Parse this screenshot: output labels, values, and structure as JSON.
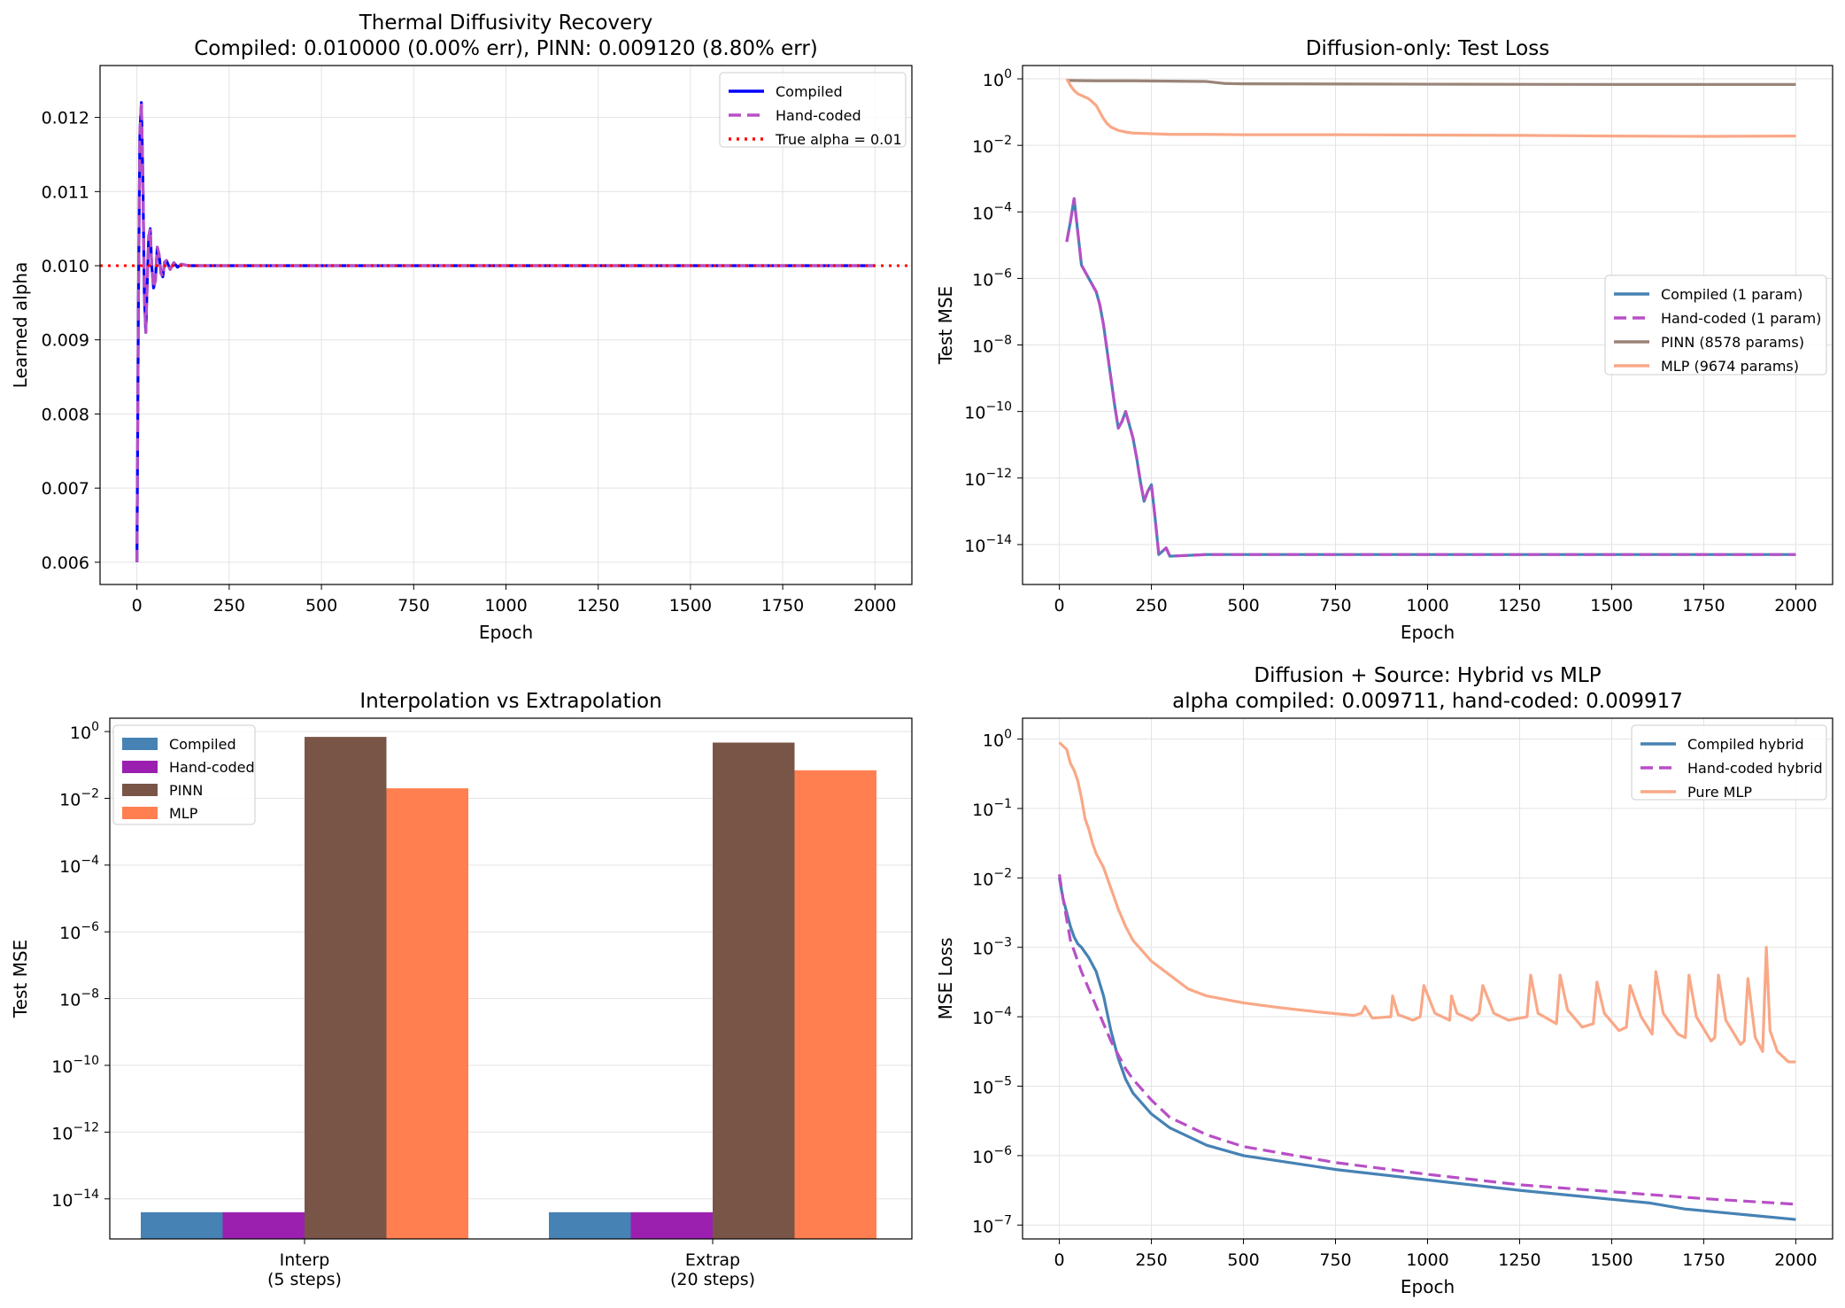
{
  "chart_data": [
    {
      "type": "line",
      "title": "Thermal Diffusivity Recovery",
      "subtitle": "Compiled: 0.010000 (0.00% err), PINN: 0.009120 (8.80% err)",
      "xlabel": "Epoch",
      "ylabel": "Learned alpha",
      "xlim": [
        -100,
        2100
      ],
      "ylim": [
        0.0057,
        0.0127
      ],
      "yscale": "linear",
      "grid": true,
      "legend_position": "top-right",
      "xticks": [
        0,
        250,
        500,
        750,
        1000,
        1250,
        1500,
        1750,
        2000
      ],
      "yticks": [
        0.006,
        0.007,
        0.008,
        0.009,
        0.01,
        0.011,
        0.012
      ],
      "ytick_labels": [
        "0.006",
        "0.007",
        "0.008",
        "0.009",
        "0.010",
        "0.011",
        "0.012"
      ],
      "series": [
        {
          "name": "Compiled",
          "color": "#0000ff",
          "style": "solid",
          "x": [
            0,
            4,
            8,
            12,
            16,
            20,
            24,
            28,
            32,
            36,
            40,
            45,
            50,
            55,
            60,
            65,
            70,
            75,
            80,
            90,
            100,
            110,
            120,
            140,
            160,
            200,
            500,
            1000,
            1500,
            2000
          ],
          "y": [
            0.006,
            0.0095,
            0.0118,
            0.0122,
            0.0112,
            0.0096,
            0.0091,
            0.0098,
            0.0104,
            0.0105,
            0.01,
            0.0097,
            0.0098,
            0.01025,
            0.01015,
            0.0099,
            0.00985,
            0.01005,
            0.01007,
            0.00995,
            0.01004,
            0.00998,
            0.01002,
            0.01,
            0.01,
            0.01,
            0.01,
            0.01,
            0.01,
            0.01
          ]
        },
        {
          "name": "Hand-coded",
          "color": "#b84fc6",
          "style": "dashed",
          "x": [
            0,
            4,
            8,
            12,
            16,
            20,
            24,
            28,
            32,
            36,
            40,
            45,
            50,
            55,
            60,
            65,
            70,
            75,
            80,
            90,
            100,
            110,
            120,
            140,
            160,
            200,
            500,
            1000,
            1500,
            2000
          ],
          "y": [
            0.006,
            0.0095,
            0.0118,
            0.0122,
            0.0112,
            0.0096,
            0.0091,
            0.0098,
            0.0104,
            0.0105,
            0.01,
            0.0097,
            0.0098,
            0.01025,
            0.01015,
            0.0099,
            0.00985,
            0.01005,
            0.01007,
            0.00995,
            0.01004,
            0.00998,
            0.01002,
            0.01,
            0.01,
            0.01,
            0.01,
            0.01,
            0.01,
            0.01
          ]
        },
        {
          "name": "True alpha = 0.01",
          "color": "#ff0000",
          "style": "dotted",
          "kind": "hline",
          "y": 0.01
        }
      ]
    },
    {
      "type": "line",
      "title": "Diffusion-only: Test Loss",
      "xlabel": "Epoch",
      "ylabel": "Test MSE",
      "xlim": [
        -100,
        2100
      ],
      "ylim_exp": [
        -15.2,
        0.4
      ],
      "yscale": "log",
      "grid": true,
      "legend_position": "center-right",
      "xticks": [
        0,
        250,
        500,
        750,
        1000,
        1250,
        1500,
        1750,
        2000
      ],
      "yticks_exp": [
        0,
        -2,
        -4,
        -6,
        -8,
        -10,
        -12,
        -14
      ],
      "series": [
        {
          "name": "Compiled (1 param)",
          "color": "#4682b4",
          "style": "solid",
          "x": [
            20,
            30,
            40,
            50,
            60,
            70,
            80,
            90,
            100,
            110,
            120,
            130,
            140,
            150,
            160,
            170,
            180,
            190,
            200,
            210,
            220,
            230,
            240,
            250,
            260,
            270,
            280,
            290,
            300,
            400,
            500,
            1000,
            1500,
            2000
          ],
          "y_exp": [
            -4.9,
            -4.3,
            -3.6,
            -4.6,
            -5.6,
            -5.8,
            -6.0,
            -6.2,
            -6.4,
            -6.8,
            -7.4,
            -8.2,
            -9.0,
            -9.8,
            -10.5,
            -10.3,
            -10.0,
            -10.4,
            -10.8,
            -11.4,
            -12.1,
            -12.7,
            -12.4,
            -12.2,
            -13.2,
            -14.3,
            -14.2,
            -14.1,
            -14.35,
            -14.3,
            -14.3,
            -14.3,
            -14.3,
            -14.3
          ]
        },
        {
          "name": "Hand-coded (1 param)",
          "color": "#b84fc6",
          "style": "dashed",
          "x": [
            20,
            30,
            40,
            50,
            60,
            70,
            80,
            90,
            100,
            110,
            120,
            130,
            140,
            150,
            160,
            170,
            180,
            190,
            200,
            210,
            220,
            230,
            240,
            250,
            260,
            270,
            280,
            290,
            300,
            400,
            500,
            1000,
            1500,
            2000
          ],
          "y_exp": [
            -4.9,
            -4.3,
            -3.6,
            -4.6,
            -5.6,
            -5.8,
            -6.0,
            -6.2,
            -6.4,
            -6.8,
            -7.4,
            -8.2,
            -9.0,
            -9.8,
            -10.5,
            -10.3,
            -10.0,
            -10.4,
            -10.8,
            -11.4,
            -12.1,
            -12.7,
            -12.4,
            -12.2,
            -13.2,
            -14.3,
            -14.2,
            -14.1,
            -14.35,
            -14.3,
            -14.3,
            -14.3,
            -14.3,
            -14.3
          ]
        },
        {
          "name": "PINN (8578 params)",
          "color": "#9a8478",
          "style": "solid",
          "x": [
            20,
            100,
            200,
            300,
            400,
            450,
            500,
            1000,
            1500,
            2000
          ],
          "y_exp": [
            -0.05,
            -0.06,
            -0.06,
            -0.07,
            -0.08,
            -0.14,
            -0.15,
            -0.16,
            -0.17,
            -0.17
          ]
        },
        {
          "name": "MLP (9674 params)",
          "color": "#f9a887",
          "style": "solid",
          "x": [
            20,
            30,
            40,
            50,
            60,
            70,
            80,
            90,
            100,
            110,
            120,
            130,
            140,
            150,
            160,
            180,
            200,
            250,
            300,
            400,
            500,
            750,
            1000,
            1250,
            1500,
            1750,
            2000
          ],
          "y_exp": [
            0.0,
            -0.2,
            -0.35,
            -0.45,
            -0.5,
            -0.55,
            -0.6,
            -0.7,
            -0.8,
            -1.0,
            -1.2,
            -1.35,
            -1.45,
            -1.5,
            -1.55,
            -1.6,
            -1.63,
            -1.65,
            -1.67,
            -1.67,
            -1.68,
            -1.68,
            -1.69,
            -1.7,
            -1.72,
            -1.73,
            -1.72
          ]
        }
      ]
    },
    {
      "type": "bar",
      "title": "Interpolation vs Extrapolation",
      "ylabel": "Test MSE",
      "yscale": "log",
      "ylim_exp": [
        -15.2,
        0.4
      ],
      "grid": true,
      "legend_position": "top-left",
      "yticks_exp": [
        0,
        -2,
        -4,
        -6,
        -8,
        -10,
        -12,
        -14
      ],
      "categories": [
        "Interp\n(5 steps)",
        "Extrap\n(20 steps)"
      ],
      "series": [
        {
          "name": "Compiled",
          "color": "#4682b4",
          "values_exp": [
            -14.4,
            -14.4
          ]
        },
        {
          "name": "Hand-coded",
          "color": "#9b20b0",
          "values_exp": [
            -14.4,
            -14.4
          ]
        },
        {
          "name": "PINN",
          "color": "#795548",
          "values_exp": [
            -0.16,
            -0.33
          ]
        },
        {
          "name": "MLP",
          "color": "#ff7f50",
          "values_exp": [
            -1.7,
            -1.16
          ]
        }
      ]
    },
    {
      "type": "line",
      "title": "Diffusion + Source: Hybrid vs MLP",
      "subtitle": "alpha compiled: 0.009711, hand-coded: 0.009917",
      "xlabel": "Epoch",
      "ylabel": "MSE Loss",
      "xlim": [
        -100,
        2100
      ],
      "ylim_exp": [
        -7.2,
        0.3
      ],
      "yscale": "log",
      "grid": true,
      "legend_position": "top-right",
      "xticks": [
        0,
        250,
        500,
        750,
        1000,
        1250,
        1500,
        1750,
        2000
      ],
      "yticks_exp": [
        0,
        -1,
        -2,
        -3,
        -4,
        -5,
        -6,
        -7
      ],
      "series": [
        {
          "name": "Compiled hybrid",
          "color": "#4682b4",
          "style": "solid",
          "x": [
            0,
            10,
            20,
            30,
            40,
            50,
            60,
            80,
            100,
            120,
            140,
            160,
            180,
            200,
            250,
            300,
            400,
            500,
            750,
            1000,
            1250,
            1500,
            1600,
            1700,
            1800,
            1900,
            2000
          ],
          "y_exp": [
            -2.0,
            -2.3,
            -2.5,
            -2.7,
            -2.85,
            -2.95,
            -3.0,
            -3.15,
            -3.35,
            -3.7,
            -4.2,
            -4.6,
            -4.9,
            -5.1,
            -5.4,
            -5.6,
            -5.85,
            -6.0,
            -6.2,
            -6.35,
            -6.5,
            -6.63,
            -6.68,
            -6.77,
            -6.82,
            -6.87,
            -6.92
          ]
        },
        {
          "name": "Hand-coded hybrid",
          "color": "#b84fc6",
          "style": "dashed",
          "x": [
            0,
            10,
            20,
            30,
            40,
            50,
            60,
            80,
            100,
            120,
            140,
            160,
            180,
            200,
            250,
            300,
            400,
            500,
            750,
            1000,
            1250,
            1500,
            1750,
            2000
          ],
          "y_exp": [
            -1.95,
            -2.3,
            -2.6,
            -2.9,
            -3.05,
            -3.2,
            -3.35,
            -3.6,
            -3.85,
            -4.1,
            -4.35,
            -4.55,
            -4.75,
            -4.9,
            -5.2,
            -5.45,
            -5.7,
            -5.87,
            -6.1,
            -6.27,
            -6.42,
            -6.52,
            -6.62,
            -6.7
          ]
        },
        {
          "name": "Pure MLP",
          "color": "#f9a887",
          "style": "solid",
          "x": [
            0,
            10,
            20,
            30,
            40,
            50,
            60,
            70,
            80,
            90,
            100,
            120,
            140,
            160,
            180,
            200,
            250,
            300,
            350,
            400,
            500,
            600,
            700,
            800,
            820,
            830,
            850,
            900,
            905,
            920,
            960,
            980,
            990,
            1020,
            1060,
            1065,
            1080,
            1120,
            1140,
            1150,
            1180,
            1220,
            1270,
            1280,
            1300,
            1350,
            1360,
            1380,
            1420,
            1450,
            1460,
            1480,
            1520,
            1540,
            1550,
            1580,
            1610,
            1620,
            1640,
            1680,
            1700,
            1710,
            1730,
            1770,
            1780,
            1790,
            1810,
            1850,
            1860,
            1870,
            1890,
            1910,
            1920,
            1930,
            1950,
            1980,
            2000
          ],
          "y_exp": [
            -0.05,
            -0.1,
            -0.15,
            -0.35,
            -0.45,
            -0.6,
            -0.85,
            -1.15,
            -1.3,
            -1.5,
            -1.65,
            -1.85,
            -2.15,
            -2.45,
            -2.7,
            -2.9,
            -3.2,
            -3.4,
            -3.6,
            -3.7,
            -3.8,
            -3.87,
            -3.93,
            -3.98,
            -3.95,
            -3.85,
            -4.02,
            -4.0,
            -3.7,
            -3.97,
            -4.05,
            -4.0,
            -3.55,
            -3.95,
            -4.05,
            -3.7,
            -3.95,
            -4.05,
            -3.95,
            -3.55,
            -3.95,
            -4.05,
            -4.0,
            -3.4,
            -3.95,
            -4.1,
            -3.4,
            -3.9,
            -4.15,
            -4.1,
            -3.5,
            -3.95,
            -4.2,
            -4.15,
            -3.55,
            -4.0,
            -4.25,
            -3.35,
            -3.95,
            -4.25,
            -4.3,
            -3.4,
            -4.0,
            -4.35,
            -4.3,
            -3.4,
            -4.05,
            -4.4,
            -4.35,
            -3.45,
            -4.3,
            -4.5,
            -3.0,
            -4.2,
            -4.5,
            -4.65,
            -4.65
          ]
        }
      ]
    }
  ]
}
